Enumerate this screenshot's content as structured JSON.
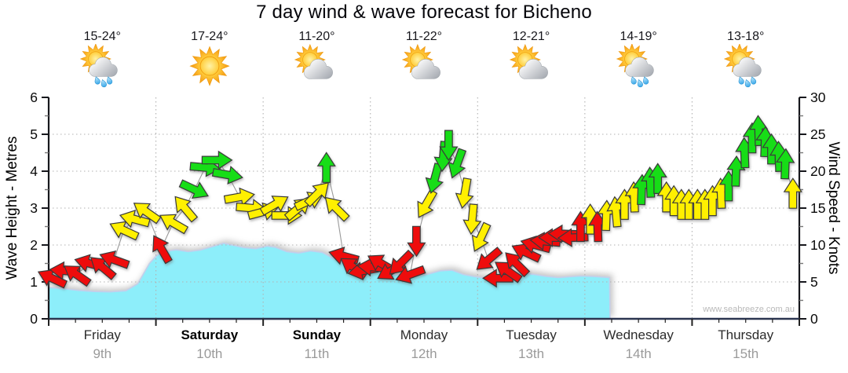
{
  "title": "7 day wind & wave forecast for Bicheno",
  "watermark": "www.seabreeze.com.au",
  "days": [
    {
      "name": "Friday",
      "date": "9th",
      "temp": "15-24°",
      "icon": "sun-cloud-rain",
      "weekend": false
    },
    {
      "name": "Saturday",
      "date": "10th",
      "temp": "17-24°",
      "icon": "sun",
      "weekend": true
    },
    {
      "name": "Sunday",
      "date": "11th",
      "temp": "11-20°",
      "icon": "sun-cloud",
      "weekend": true
    },
    {
      "name": "Monday",
      "date": "12th",
      "temp": "11-22°",
      "icon": "sun-cloud",
      "weekend": false
    },
    {
      "name": "Tuesday",
      "date": "13th",
      "temp": "12-21°",
      "icon": "sun-cloud",
      "weekend": false
    },
    {
      "name": "Wednesday",
      "date": "14th",
      "temp": "14-19°",
      "icon": "sun-cloud-rain",
      "weekend": false
    },
    {
      "name": "Thursday",
      "date": "15th",
      "temp": "13-18°",
      "icon": "sun-cloud-rain",
      "weekend": false
    }
  ],
  "chart_data": {
    "type": "area",
    "title": "7 day wind & wave forecast for Bicheno",
    "x_domain_days": [
      0,
      7
    ],
    "grid": "dotted",
    "axes": {
      "left": {
        "label": "Wave Height - Metres",
        "min": 0,
        "max": 6,
        "major_step": 1,
        "minor_step": 0.5
      },
      "right": {
        "label": "Wind Speed - Knots",
        "min": 0,
        "max": 30,
        "major_step": 5,
        "minor_step": 2.5
      }
    },
    "wave_series": {
      "name": "Wave Height",
      "unit": "m",
      "points": [
        [
          0,
          0.85
        ],
        [
          0.13,
          0.82
        ],
        [
          0.28,
          0.77
        ],
        [
          0.42,
          0.74
        ],
        [
          0.57,
          0.73
        ],
        [
          0.72,
          0.76
        ],
        [
          0.83,
          0.95
        ],
        [
          0.94,
          1.5
        ],
        [
          1.01,
          1.72
        ],
        [
          1.08,
          1.82
        ],
        [
          1.19,
          1.87
        ],
        [
          1.3,
          1.82
        ],
        [
          1.41,
          1.86
        ],
        [
          1.52,
          1.95
        ],
        [
          1.63,
          2.05
        ],
        [
          1.71,
          2.0
        ],
        [
          1.82,
          1.93
        ],
        [
          1.93,
          1.9
        ],
        [
          2.04,
          1.97
        ],
        [
          2.11,
          1.94
        ],
        [
          2.22,
          1.82
        ],
        [
          2.33,
          1.78
        ],
        [
          2.44,
          1.84
        ],
        [
          2.55,
          1.8
        ],
        [
          2.66,
          1.63
        ],
        [
          2.77,
          1.48
        ],
        [
          2.88,
          1.38
        ],
        [
          2.99,
          1.32
        ],
        [
          3.1,
          1.26
        ],
        [
          3.21,
          1.21
        ],
        [
          3.32,
          1.17
        ],
        [
          3.43,
          1.16
        ],
        [
          3.54,
          1.21
        ],
        [
          3.65,
          1.3
        ],
        [
          3.76,
          1.32
        ],
        [
          3.87,
          1.2
        ],
        [
          3.98,
          1.14
        ],
        [
          4.09,
          1.1
        ],
        [
          4.2,
          1.05
        ],
        [
          4.31,
          1.18
        ],
        [
          4.42,
          1.24
        ],
        [
          4.53,
          1.2
        ],
        [
          4.64,
          1.15
        ],
        [
          4.75,
          1.12
        ],
        [
          4.85,
          1.14
        ],
        [
          4.96,
          1.16
        ],
        [
          5.07,
          1.15
        ],
        [
          5.18,
          1.13
        ],
        [
          5.23,
          1.12
        ],
        [
          5.235,
          0
        ]
      ]
    },
    "wind_arrows": {
      "name": "Wind Speed & Direction",
      "unit": "knots",
      "note_format": "[day_offset, knots, direction_deg_0_is_east, color]",
      "points": [
        [
          0.03,
          5.5,
          205,
          "red"
        ],
        [
          0.15,
          6.5,
          185,
          "red"
        ],
        [
          0.26,
          6,
          215,
          "red"
        ],
        [
          0.38,
          7.5,
          195,
          "red"
        ],
        [
          0.5,
          7,
          220,
          "red"
        ],
        [
          0.61,
          8,
          200,
          "red"
        ],
        [
          0.7,
          12,
          205,
          "yellow"
        ],
        [
          0.8,
          13.5,
          195,
          "yellow"
        ],
        [
          0.91,
          14.5,
          215,
          "yellow"
        ],
        [
          1.05,
          9.5,
          240,
          "red"
        ],
        [
          1.16,
          13,
          210,
          "yellow"
        ],
        [
          1.27,
          15,
          230,
          "yellow"
        ],
        [
          1.36,
          17.5,
          25,
          "green"
        ],
        [
          1.46,
          20.5,
          5,
          "green"
        ],
        [
          1.57,
          21.5,
          0,
          "green"
        ],
        [
          1.67,
          19.5,
          10,
          "green"
        ],
        [
          1.78,
          16.5,
          350,
          "yellow"
        ],
        [
          1.89,
          15,
          5,
          "yellow"
        ],
        [
          2.0,
          14.5,
          345,
          "yellow"
        ],
        [
          2.11,
          15.5,
          330,
          "yellow"
        ],
        [
          2.22,
          14,
          0,
          "yellow"
        ],
        [
          2.33,
          15,
          320,
          "yellow"
        ],
        [
          2.43,
          16,
          335,
          "yellow"
        ],
        [
          2.51,
          17,
          315,
          "yellow"
        ],
        [
          2.59,
          20.5,
          270,
          "green"
        ],
        [
          2.68,
          15,
          225,
          "yellow"
        ],
        [
          2.75,
          8.5,
          195,
          "red"
        ],
        [
          2.84,
          7,
          215,
          "red"
        ],
        [
          2.93,
          6.5,
          170,
          "red"
        ],
        [
          3.02,
          7,
          185,
          "red"
        ],
        [
          3.1,
          7.5,
          210,
          "red"
        ],
        [
          3.19,
          6.5,
          150,
          "red"
        ],
        [
          3.28,
          7.5,
          135,
          "red"
        ],
        [
          3.37,
          6,
          160,
          "red"
        ],
        [
          3.43,
          10.5,
          90,
          "red"
        ],
        [
          3.52,
          15.5,
          120,
          "yellow"
        ],
        [
          3.6,
          19,
          105,
          "green"
        ],
        [
          3.68,
          22,
          95,
          "green"
        ],
        [
          3.73,
          23.5,
          90,
          "green"
        ],
        [
          3.81,
          21,
          110,
          "green"
        ],
        [
          3.88,
          17,
          100,
          "yellow"
        ],
        [
          3.95,
          13.5,
          95,
          "yellow"
        ],
        [
          4.03,
          11,
          115,
          "yellow"
        ],
        [
          4.1,
          8,
          140,
          "red"
        ],
        [
          4.19,
          5.5,
          180,
          "red"
        ],
        [
          4.28,
          6.5,
          215,
          "red"
        ],
        [
          4.36,
          7.5,
          225,
          "red"
        ],
        [
          4.45,
          9,
          205,
          "red"
        ],
        [
          4.54,
          10,
          195,
          "red"
        ],
        [
          4.63,
          10.5,
          185,
          "red"
        ],
        [
          4.71,
          11,
          180,
          "red"
        ],
        [
          4.8,
          11.5,
          182,
          "red"
        ],
        [
          4.89,
          11,
          178,
          "red"
        ],
        [
          4.96,
          12.5,
          270,
          "red"
        ],
        [
          5.05,
          13.5,
          270,
          "yellow"
        ],
        [
          5.12,
          12.5,
          268,
          "red"
        ],
        [
          5.2,
          14,
          272,
          "yellow"
        ],
        [
          5.29,
          14.5,
          265,
          "yellow"
        ],
        [
          5.37,
          15.5,
          270,
          "yellow"
        ],
        [
          5.46,
          16.5,
          268,
          "yellow"
        ],
        [
          5.53,
          17.5,
          272,
          "green"
        ],
        [
          5.61,
          18.5,
          268,
          "green"
        ],
        [
          5.68,
          19,
          270,
          "green"
        ],
        [
          5.76,
          16.5,
          270,
          "yellow"
        ],
        [
          5.83,
          16,
          270,
          "yellow"
        ],
        [
          5.9,
          15.5,
          270,
          "yellow"
        ],
        [
          5.97,
          15.5,
          270,
          "yellow"
        ],
        [
          6.05,
          15.5,
          270,
          "yellow"
        ],
        [
          6.12,
          15.5,
          270,
          "yellow"
        ],
        [
          6.19,
          16,
          270,
          "yellow"
        ],
        [
          6.27,
          17,
          268,
          "yellow"
        ],
        [
          6.34,
          18,
          270,
          "green"
        ],
        [
          6.41,
          20,
          272,
          "green"
        ],
        [
          6.49,
          22.5,
          268,
          "green"
        ],
        [
          6.56,
          24.5,
          270,
          "green"
        ],
        [
          6.62,
          25.5,
          268,
          "green"
        ],
        [
          6.68,
          24,
          272,
          "green"
        ],
        [
          6.74,
          23,
          270,
          "green"
        ],
        [
          6.81,
          22,
          268,
          "green"
        ],
        [
          6.87,
          21,
          272,
          "green"
        ],
        [
          6.94,
          17,
          270,
          "yellow"
        ]
      ]
    },
    "colors": {
      "arrow_red": "#ee0c0c",
      "arrow_yellow": "#fff000",
      "arrow_green": "#17dd17",
      "arrow_outline": "#3a3a3a",
      "wave_fill": "#8deefa",
      "wave_edge": "#c2cfec",
      "grid": "#b2b2b2",
      "axis": "#17181d",
      "baseline": "#2b3550",
      "connector": "#9a9a9a",
      "tick_label": "#0a0a0a"
    }
  }
}
